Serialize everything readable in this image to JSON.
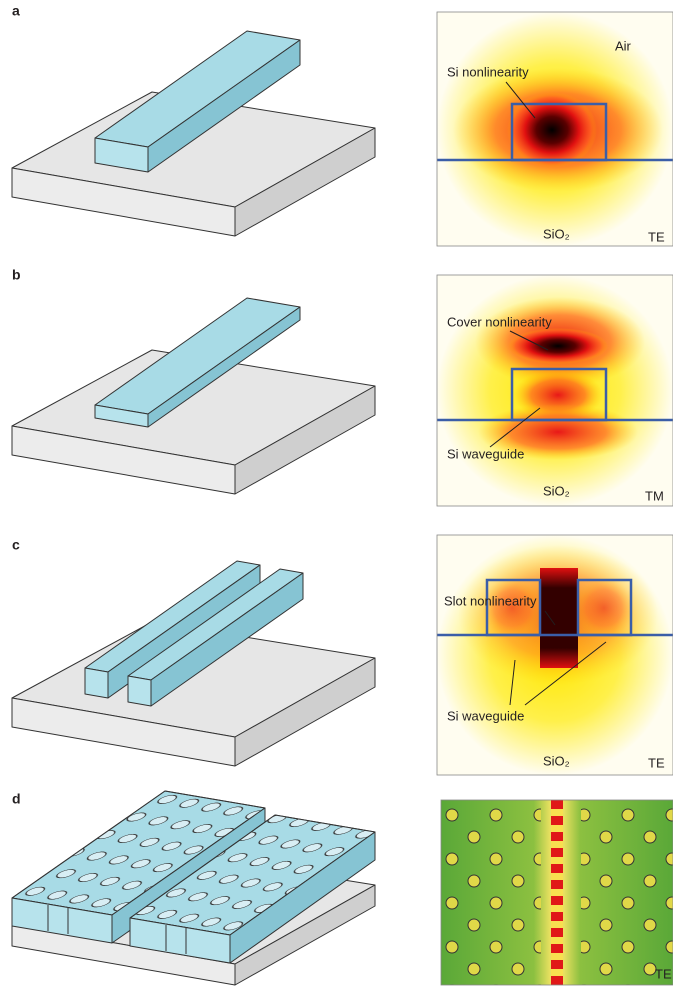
{
  "panels": [
    {
      "label": "a",
      "air": "Air",
      "nonlinearity": "Si nonlinearity",
      "substrate": "SiO₂",
      "mode": "TE"
    },
    {
      "label": "b",
      "nonlinearity": "Cover nonlinearity",
      "waveguide": "Si waveguide",
      "substrate": "SiO₂",
      "mode": "TM"
    },
    {
      "label": "c",
      "nonlinearity": "Slot nonlinearity",
      "waveguide": "Si waveguide",
      "substrate": "SiO₂",
      "mode": "TE"
    },
    {
      "label": "d",
      "mode": "TE"
    }
  ]
}
